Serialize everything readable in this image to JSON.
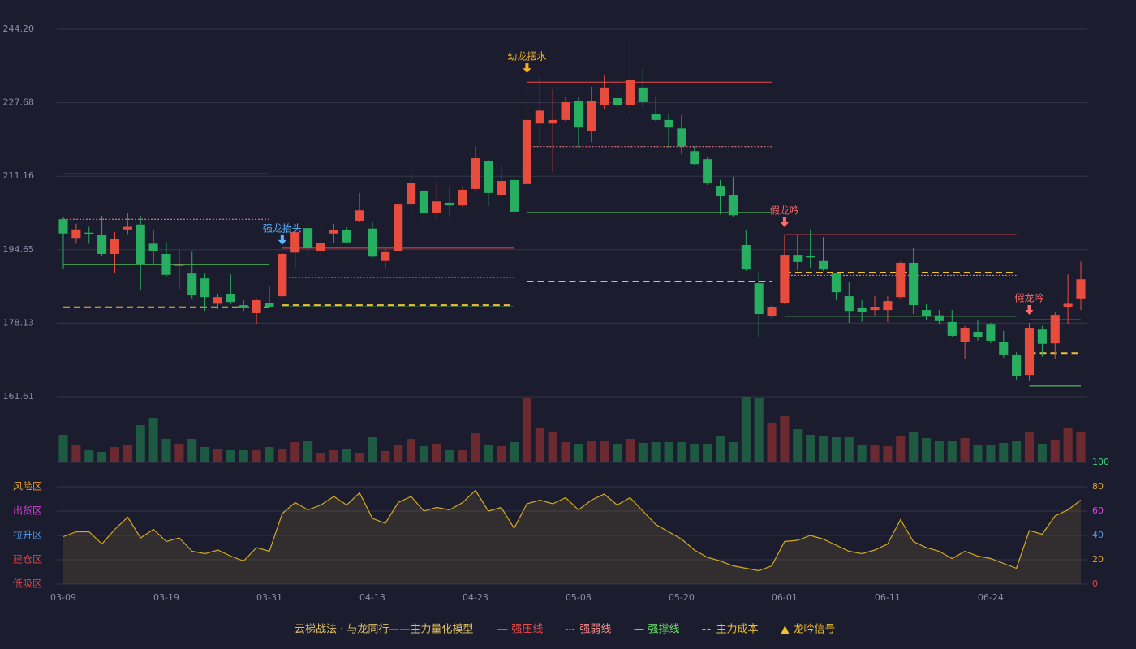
{
  "chart_data": {
    "type": "candlestick",
    "title": "云梯战法 · 与龙同行——主力量化模型",
    "categories": [
      "03-09",
      null,
      null,
      null,
      null,
      null,
      null,
      null,
      "03-19",
      null,
      null,
      null,
      null,
      null,
      null,
      null,
      "03-31",
      null,
      null,
      null,
      null,
      null,
      null,
      null,
      "04-13",
      null,
      null,
      null,
      null,
      null,
      null,
      null,
      "04-23",
      null,
      null,
      null,
      null,
      null,
      null,
      null,
      "05-08",
      null,
      null,
      null,
      null,
      null,
      null,
      null,
      "05-20",
      null,
      null,
      null,
      null,
      null,
      null,
      null,
      "06-01",
      null,
      null,
      null,
      null,
      null,
      null,
      null,
      "06-11",
      null,
      null,
      null,
      null,
      null,
      null,
      null,
      "06-24",
      null,
      null,
      null,
      null,
      null,
      null,
      null
    ],
    "open": [
      201.5,
      197.3,
      198.5,
      197.9,
      193.7,
      199.2,
      200.3,
      196.0,
      193.7,
      191.1,
      189.3,
      188.2,
      182.5,
      184.7,
      182.2,
      180.4,
      182.7,
      184.2,
      194.0,
      199.5,
      194.4,
      198.3,
      199.0,
      201.0,
      199.4,
      192.1,
      194.4,
      204.8,
      207.9,
      203.0,
      205.2,
      204.6,
      208.3,
      214.5,
      207.0,
      210.3,
      209.4,
      223.0,
      223.0,
      223.8,
      228.0,
      221.4,
      227.1,
      228.7,
      227.1,
      231.1,
      225.2,
      223.8,
      221.9,
      216.8,
      215.0,
      209.0,
      207.0,
      195.7,
      187.1,
      179.7,
      182.7,
      193.5,
      193.3,
      192.1,
      189.3,
      184.2,
      181.5,
      181.1,
      181.1,
      184.0,
      191.7,
      181.1,
      179.9,
      178.4,
      174.0,
      176.2,
      177.8,
      174.0,
      171.1,
      166.5,
      176.7,
      173.6,
      181.8,
      183.7
    ],
    "high": [
      201.9,
      200.5,
      199.8,
      202.3,
      198.6,
      203.0,
      202.3,
      199.2,
      196.3,
      194.6,
      194.2,
      189.3,
      184.7,
      189.1,
      183.3,
      183.7,
      186.6,
      193.9,
      200.1,
      200.6,
      199.7,
      200.5,
      199.7,
      207.4,
      200.8,
      195.2,
      205.2,
      212.7,
      208.8,
      209.9,
      208.8,
      208.8,
      217.9,
      214.9,
      213.7,
      211.0,
      232.5,
      233.8,
      230.7,
      228.9,
      228.9,
      231.3,
      233.8,
      232.0,
      242.0,
      235.4,
      228.9,
      225.2,
      224.9,
      217.9,
      215.4,
      210.3,
      211.0,
      199.0,
      189.7,
      182.2,
      197.9,
      197.9,
      199.2,
      197.5,
      189.5,
      187.3,
      183.3,
      184.2,
      184.2,
      192.0,
      195.0,
      182.4,
      181.1,
      181.1,
      177.5,
      178.9,
      178.2,
      176.4,
      171.6,
      178.2,
      177.5,
      180.6,
      189.1,
      192.0
    ],
    "low": [
      190.2,
      196.0,
      196.0,
      193.3,
      189.5,
      198.0,
      185.5,
      191.5,
      188.6,
      185.7,
      183.7,
      180.9,
      181.3,
      182.4,
      180.9,
      177.8,
      181.6,
      184.0,
      190.4,
      193.3,
      193.3,
      196.1,
      196.1,
      200.8,
      192.8,
      190.4,
      194.2,
      203.0,
      201.5,
      201.2,
      201.9,
      204.3,
      207.7,
      204.4,
      206.6,
      201.5,
      209.2,
      217.9,
      212.1,
      223.4,
      217.4,
      218.8,
      226.3,
      226.1,
      224.7,
      226.5,
      223.4,
      217.4,
      216.1,
      213.6,
      209.2,
      202.6,
      202.1,
      189.9,
      175.1,
      179.3,
      182.4,
      190.0,
      190.6,
      189.9,
      183.3,
      178.2,
      178.4,
      179.9,
      178.4,
      183.7,
      180.2,
      178.8,
      177.8,
      175.1,
      170.0,
      174.2,
      173.6,
      170.4,
      165.4,
      165.1,
      170.6,
      170.0,
      178.0,
      181.1
    ],
    "close": [
      198.3,
      199.2,
      198.2,
      193.7,
      197.0,
      199.8,
      191.3,
      194.4,
      189.0,
      191.2,
      184.4,
      184.0,
      184.0,
      182.9,
      181.5,
      183.3,
      181.8,
      193.7,
      198.6,
      195.0,
      196.1,
      199.0,
      196.3,
      203.5,
      193.1,
      194.1,
      204.8,
      209.7,
      202.8,
      205.5,
      204.6,
      208.1,
      215.2,
      207.4,
      210.1,
      203.2,
      223.8,
      225.9,
      223.8,
      227.8,
      222.1,
      228.0,
      231.1,
      227.1,
      232.9,
      227.8,
      223.8,
      222.1,
      217.9,
      213.9,
      209.7,
      206.8,
      202.4,
      190.2,
      180.2,
      181.8,
      193.5,
      191.9,
      192.9,
      190.2,
      185.1,
      180.9,
      180.6,
      181.8,
      183.1,
      191.7,
      182.2,
      179.7,
      178.6,
      175.3,
      177.1,
      175.1,
      174.2,
      171.1,
      166.2,
      177.1,
      173.5,
      180.0,
      182.5,
      188.0
    ],
    "up_color": "#e84c3d",
    "down_color": "#27ae60",
    "ylim": [
      161.61,
      244.2
    ],
    "yticks": [
      161.61,
      178.13,
      194.65,
      211.16,
      227.68,
      {
        "value": 244.2,
        "label": "244.20"
      }
    ],
    "grid": true,
    "volume": {
      "values": [
        34,
        21,
        15,
        13,
        19,
        22,
        46,
        55,
        29,
        23,
        29,
        19,
        17,
        15,
        15,
        15,
        19,
        16,
        25,
        26,
        12,
        15,
        16,
        11,
        31,
        14,
        22,
        29,
        20,
        23,
        15,
        15,
        36,
        21,
        20,
        25,
        79,
        42,
        37,
        25,
        23,
        27,
        27,
        23,
        29,
        24,
        25,
        25,
        25,
        23,
        23,
        32,
        25,
        81,
        79,
        49,
        57,
        41,
        34,
        32,
        31,
        31,
        21,
        21,
        20,
        33,
        38,
        30,
        27,
        27,
        30,
        21,
        22,
        24,
        26,
        38,
        23,
        28,
        42,
        37
      ],
      "ylim": [
        0,
        81
      ],
      "up_color": "#6b2a30",
      "down_color": "#1e5a42"
    },
    "lines": [
      {
        "name": "强压线",
        "color": "#f04848",
        "style": "solid",
        "segments": [
          {
            "from": 0,
            "to": 16,
            "value": 211.7
          },
          {
            "from": 17,
            "to": 35,
            "value": 195.0
          },
          {
            "from": 36,
            "to": 55,
            "value": 232.3
          },
          {
            "from": 56,
            "to": 74,
            "value": 198.1
          },
          {
            "from": 75,
            "to": 79,
            "value": 178.9
          }
        ]
      },
      {
        "name": "强弱线",
        "color": "#ff8a8a",
        "style": "dotted",
        "segments": [
          {
            "from": 0,
            "to": 16,
            "value": 201.5
          },
          {
            "from": 17,
            "to": 35,
            "value": 188.4
          },
          {
            "from": 36,
            "to": 55,
            "value": 217.8
          },
          {
            "from": 56,
            "to": 74,
            "value": 188.9
          }
        ]
      },
      {
        "name": "强撑线",
        "color": "#5ee05e",
        "style": "solid",
        "segments": [
          {
            "from": 0,
            "to": 16,
            "value": 191.3
          },
          {
            "from": 17,
            "to": 35,
            "value": 181.8
          },
          {
            "from": 36,
            "to": 55,
            "value": 203.0
          },
          {
            "from": 56,
            "to": 74,
            "value": 179.7
          },
          {
            "from": 75,
            "to": 79,
            "value": 164.0
          }
        ]
      },
      {
        "name": "主力成本",
        "color": "#f0c030",
        "style": "dashed",
        "segments": [
          {
            "from": 0,
            "to": 16,
            "value": 181.7
          },
          {
            "from": 17,
            "to": 35,
            "value": 182.2
          },
          {
            "from": 36,
            "to": 55,
            "value": 187.5
          },
          {
            "from": 56,
            "to": 74,
            "value": 189.5
          },
          {
            "from": 75,
            "to": 79,
            "value": 171.4
          }
        ]
      }
    ],
    "signals": {
      "name": "龙吟信号",
      "color": "#f0c030",
      "items": [
        {
          "index": 17,
          "label": "强龙抬头",
          "color": "#5ab4ff"
        },
        {
          "index": 36,
          "label": "幼龙摆水",
          "color": "#f0b030"
        },
        {
          "index": 56,
          "label": "假龙吟",
          "color": "#ff6a6a"
        },
        {
          "index": 75,
          "label": "假龙吟",
          "color": "#ff6a6a"
        }
      ]
    },
    "oscillator": {
      "values": [
        39,
        43,
        43,
        33,
        45,
        55,
        38,
        45,
        35,
        38,
        27,
        25,
        28,
        23,
        19,
        30,
        27,
        58,
        67,
        61,
        65,
        72,
        65,
        75,
        54,
        50,
        67,
        72,
        60,
        63,
        61,
        67,
        77,
        60,
        63,
        46,
        66,
        69,
        66,
        71,
        61,
        69,
        74,
        65,
        71,
        60,
        49,
        43,
        37,
        28,
        22,
        19,
        15,
        13,
        11,
        15,
        35,
        36,
        40,
        37,
        32,
        27,
        25,
        28,
        33,
        53,
        35,
        30,
        27,
        21,
        27,
        23,
        21,
        17,
        13,
        44,
        41,
        56,
        61,
        69
      ],
      "color": "#d4aa20",
      "ylim": [
        0,
        100
      ],
      "yticks": [
        0,
        20,
        40,
        60,
        80,
        100
      ],
      "tick_colors": [
        "#e04848",
        "#e0a030",
        "#4a9af0",
        "#e040e0",
        "#e0a030",
        "#3ad17a"
      ],
      "zones": [
        {
          "value": 80,
          "label": "风险区",
          "color": "#e0a030"
        },
        {
          "value": 60,
          "label": "出货区",
          "color": "#e040e0"
        },
        {
          "value": 40,
          "label": "拉升区",
          "color": "#4a9af0"
        },
        {
          "value": 20,
          "label": "建仓区",
          "color": "#e04848"
        },
        {
          "value": 0,
          "label": "低吸区",
          "color": "#e04848"
        }
      ]
    }
  }
}
